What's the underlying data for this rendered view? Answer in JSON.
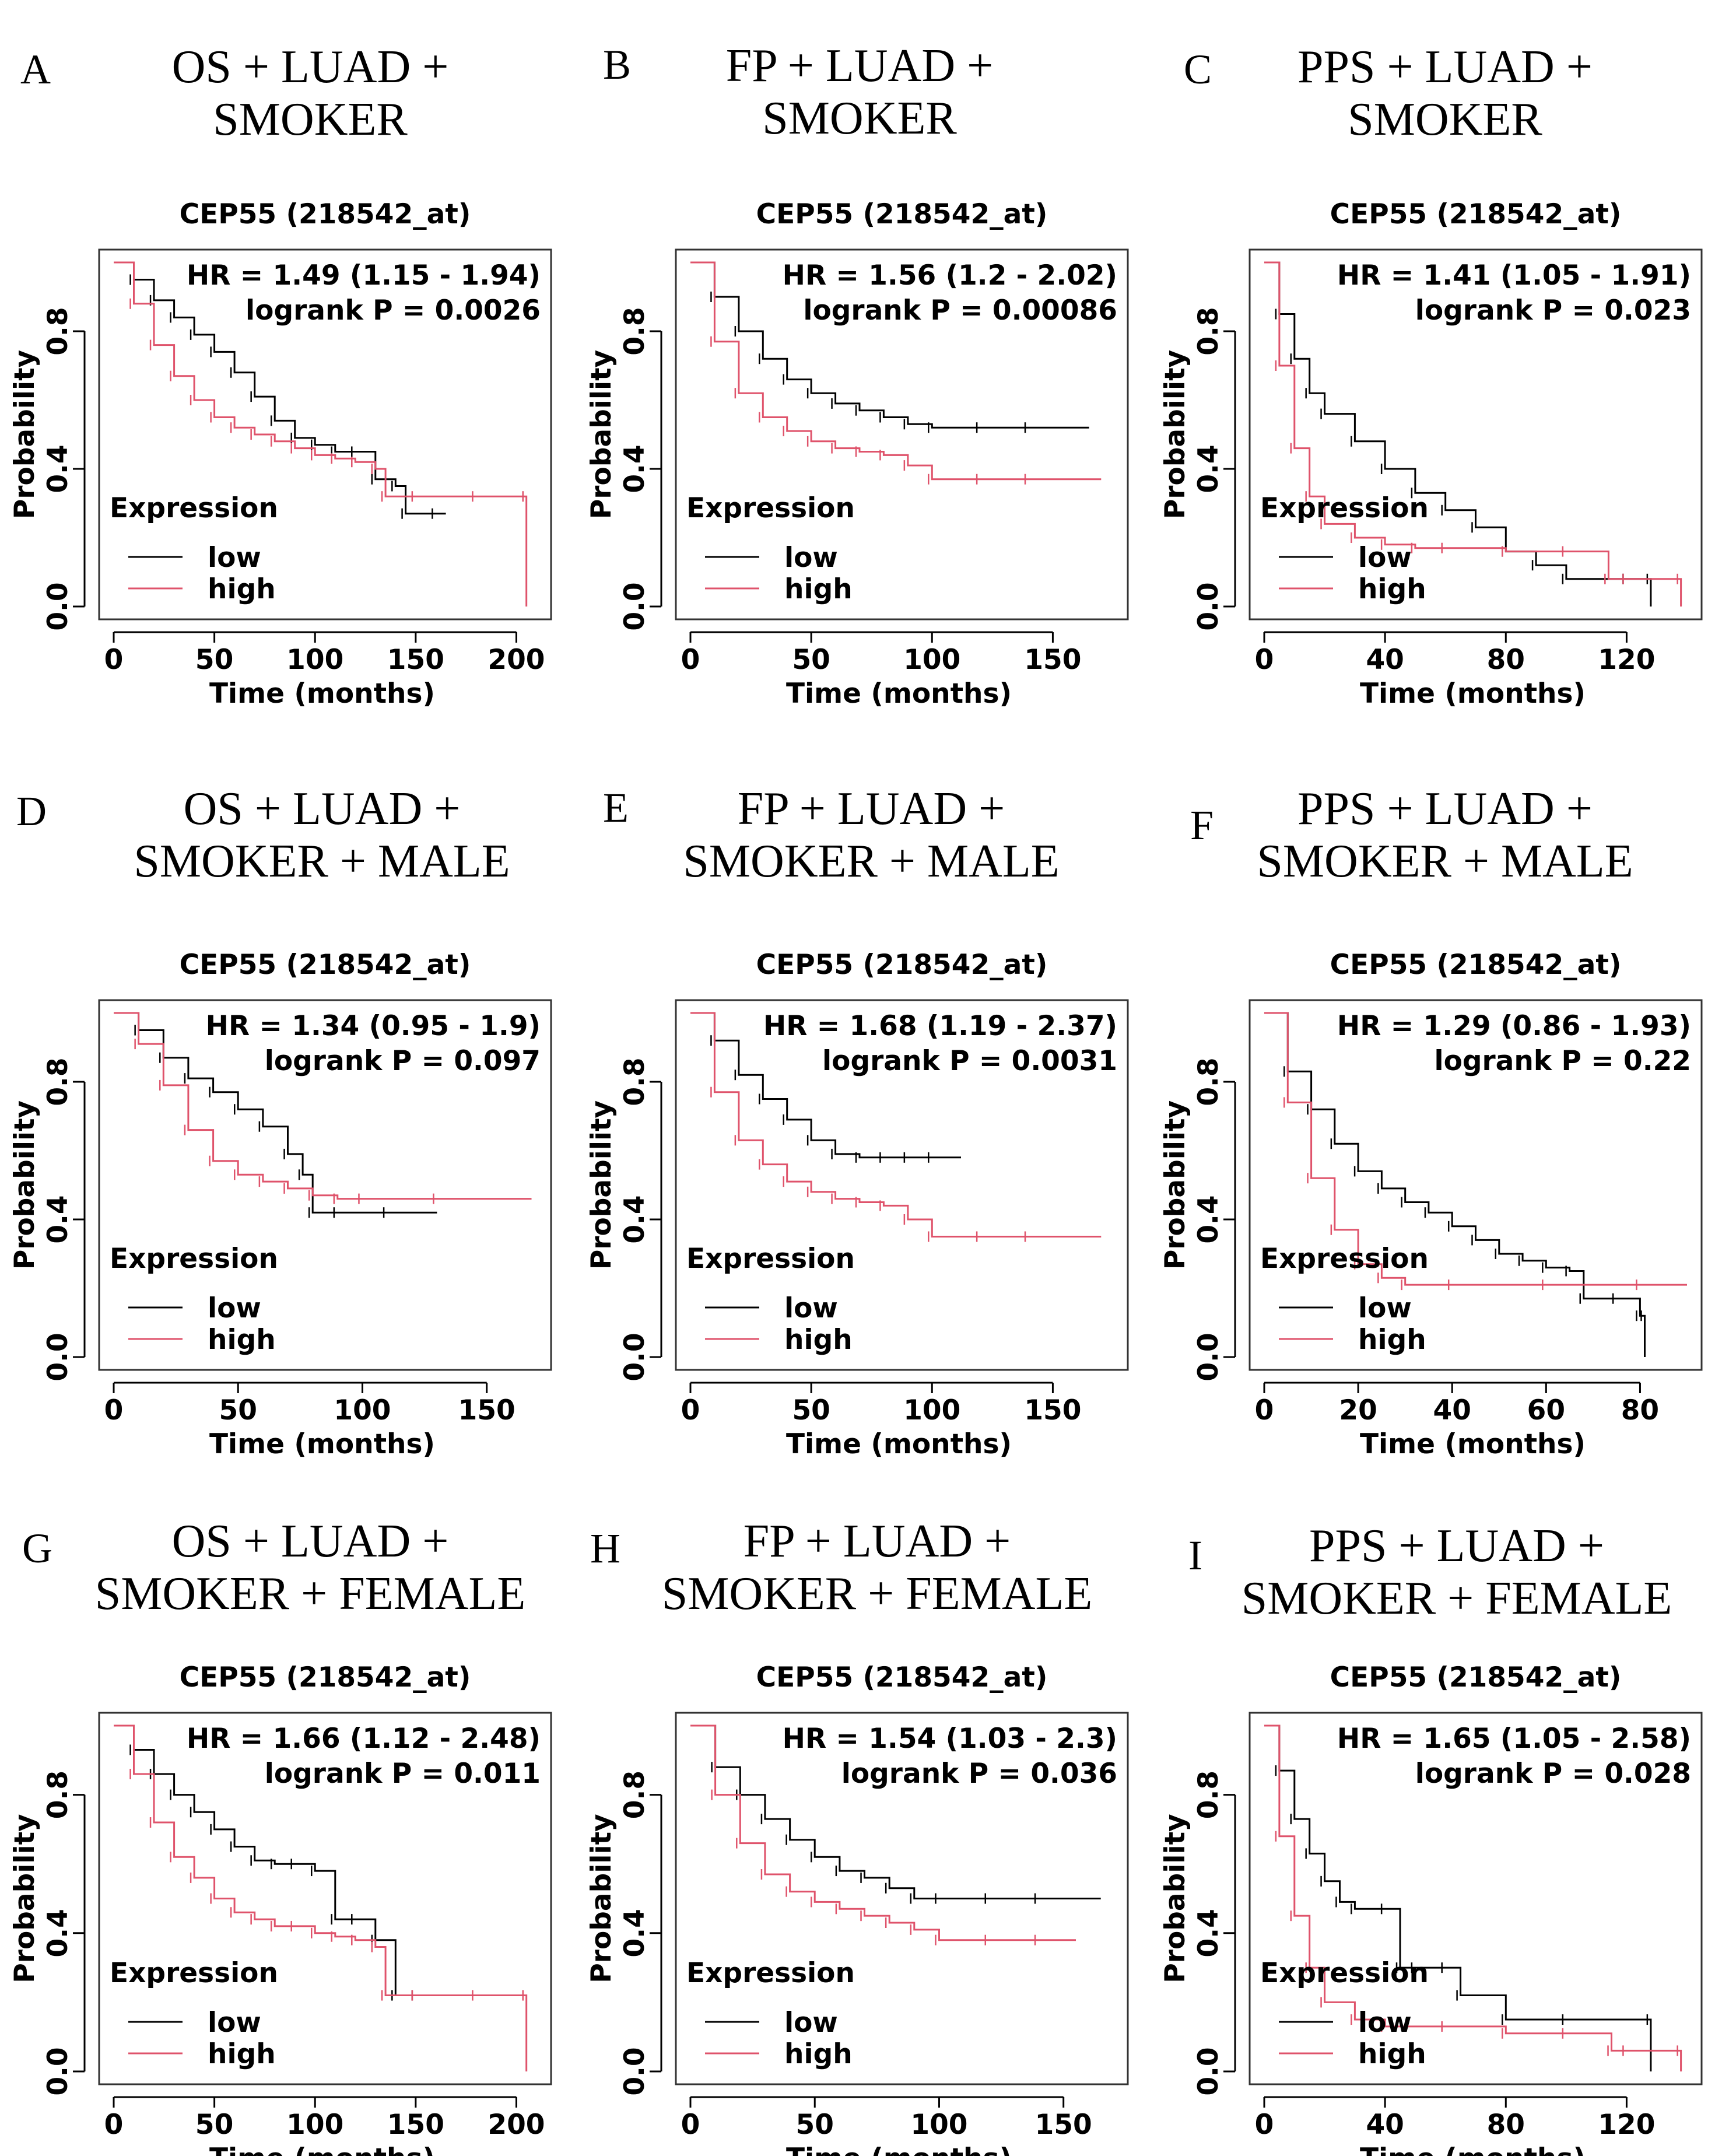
{
  "colors": {
    "low": "#000000",
    "high": "#DF536B"
  },
  "panels": [
    {
      "id": "A",
      "label": "A",
      "title_line1": "OS + LUAD +",
      "title_line2": "SMOKER",
      "gene": "CEP55 (218542_at)",
      "hr": "HR = 1.49 (1.15 - 1.94)",
      "logrank": "logrank P = 0.0026",
      "ylabel": "Probability",
      "xlabel": "Time (months)",
      "legend_title": "Expression",
      "legend_low": "low",
      "legend_high": "high"
    },
    {
      "id": "B",
      "label": "B",
      "title_line1": "FP + LUAD +",
      "title_line2": "SMOKER",
      "gene": "CEP55 (218542_at)",
      "hr": "HR = 1.56 (1.2 - 2.02)",
      "logrank": "logrank P = 0.00086",
      "ylabel": "Probability",
      "xlabel": "Time (months)",
      "legend_title": "Expression",
      "legend_low": "low",
      "legend_high": "high"
    },
    {
      "id": "C",
      "label": "C",
      "title_line1": "PPS + LUAD +",
      "title_line2": "SMOKER",
      "gene": "CEP55 (218542_at)",
      "hr": "HR = 1.41 (1.05 - 1.91)",
      "logrank": "logrank P = 0.023",
      "ylabel": "Probability",
      "xlabel": "Time (months)",
      "legend_title": "Expression",
      "legend_low": "low",
      "legend_high": "high"
    },
    {
      "id": "D",
      "label": "D",
      "title_line1": "OS + LUAD +",
      "title_line2": "SMOKER + MALE",
      "gene": "CEP55 (218542_at)",
      "hr": "HR = 1.34 (0.95 - 1.9)",
      "logrank": "logrank P = 0.097",
      "ylabel": "Probability",
      "xlabel": "Time (months)",
      "legend_title": "Expression",
      "legend_low": "low",
      "legend_high": "high"
    },
    {
      "id": "E",
      "label": "E",
      "title_line1": "FP + LUAD +",
      "title_line2": "SMOKER + MALE",
      "gene": "CEP55 (218542_at)",
      "hr": "HR = 1.68 (1.19 - 2.37)",
      "logrank": "logrank P = 0.0031",
      "ylabel": "Probability",
      "xlabel": "Time (months)",
      "legend_title": "Expression",
      "legend_low": "low",
      "legend_high": "high"
    },
    {
      "id": "F",
      "label": "F",
      "title_line1": "PPS + LUAD +",
      "title_line2": "SMOKER + MALE",
      "gene": "CEP55 (218542_at)",
      "hr": "HR = 1.29 (0.86 - 1.93)",
      "logrank": "logrank P = 0.22",
      "ylabel": "Probability",
      "xlabel": "Time (months)",
      "legend_title": "Expression",
      "legend_low": "low",
      "legend_high": "high"
    },
    {
      "id": "G",
      "label": "G",
      "title_line1": "OS + LUAD +",
      "title_line2": "SMOKER + FEMALE",
      "gene": "CEP55 (218542_at)",
      "hr": "HR = 1.66 (1.12 - 2.48)",
      "logrank": "logrank P = 0.011",
      "ylabel": "Probability",
      "xlabel": "Time (months)",
      "legend_title": "Expression",
      "legend_low": "low",
      "legend_high": "high"
    },
    {
      "id": "H",
      "label": "H",
      "title_line1": "FP + LUAD +",
      "title_line2": "SMOKER + FEMALE",
      "gene": "CEP55 (218542_at)",
      "hr": "HR = 1.54 (1.03 - 2.3)",
      "logrank": "logrank P = 0.036",
      "ylabel": "Probability",
      "xlabel": "Time (months)",
      "legend_title": "Expression",
      "legend_low": "low",
      "legend_high": "high"
    },
    {
      "id": "I",
      "label": "I",
      "title_line1": "PPS + LUAD +",
      "title_line2": "SMOKER + FEMALE",
      "gene": "CEP55 (218542_at)",
      "hr": "HR = 1.65 (1.05 - 2.58)",
      "logrank": "logrank P = 0.028",
      "ylabel": "Probability",
      "xlabel": "Time (months)",
      "legend_title": "Expression",
      "legend_low": "low",
      "legend_high": "high"
    }
  ],
  "chart_data": [
    {
      "panel": "A",
      "type": "line",
      "title": "CEP55 (218542_at)",
      "xlabel": "Time (months)",
      "ylabel": "Probability",
      "xlim": [
        0,
        210
      ],
      "ylim": [
        0,
        1
      ],
      "xticks": [
        0,
        50,
        100,
        150,
        200
      ],
      "yticks": [
        0.0,
        0.4,
        0.8
      ],
      "series": [
        {
          "name": "low",
          "x": [
            0,
            10,
            20,
            30,
            40,
            50,
            60,
            70,
            80,
            90,
            100,
            110,
            120,
            130,
            140,
            145,
            160,
            165
          ],
          "y": [
            1.0,
            0.95,
            0.89,
            0.84,
            0.79,
            0.74,
            0.68,
            0.61,
            0.54,
            0.49,
            0.47,
            0.45,
            0.45,
            0.37,
            0.35,
            0.27,
            0.27,
            0.27
          ]
        },
        {
          "name": "high",
          "x": [
            0,
            10,
            20,
            30,
            40,
            50,
            60,
            70,
            80,
            90,
            100,
            110,
            120,
            130,
            135,
            150,
            180,
            205,
            205
          ],
          "y": [
            1.0,
            0.88,
            0.76,
            0.67,
            0.6,
            0.55,
            0.52,
            0.5,
            0.48,
            0.46,
            0.44,
            0.43,
            0.42,
            0.4,
            0.32,
            0.32,
            0.32,
            0.32,
            0.0
          ]
        }
      ]
    },
    {
      "panel": "B",
      "type": "line",
      "title": "CEP55 (218542_at)",
      "xlabel": "Time (months)",
      "ylabel": "Probability",
      "xlim": [
        0,
        175
      ],
      "ylim": [
        0,
        1
      ],
      "xticks": [
        0,
        50,
        100,
        150
      ],
      "yticks": [
        0.0,
        0.4,
        0.8
      ],
      "series": [
        {
          "name": "low",
          "x": [
            0,
            10,
            20,
            30,
            40,
            50,
            60,
            70,
            80,
            90,
            100,
            120,
            140,
            165
          ],
          "y": [
            1.0,
            0.9,
            0.8,
            0.72,
            0.66,
            0.62,
            0.59,
            0.57,
            0.55,
            0.53,
            0.52,
            0.52,
            0.52,
            0.52
          ]
        },
        {
          "name": "high",
          "x": [
            0,
            10,
            20,
            30,
            40,
            50,
            60,
            70,
            80,
            90,
            100,
            120,
            140,
            170
          ],
          "y": [
            1.0,
            0.77,
            0.62,
            0.55,
            0.51,
            0.48,
            0.46,
            0.45,
            0.44,
            0.41,
            0.37,
            0.37,
            0.37,
            0.37
          ]
        }
      ]
    },
    {
      "panel": "C",
      "type": "line",
      "title": "CEP55 (218542_at)",
      "xlabel": "Time (months)",
      "ylabel": "Probability",
      "xlim": [
        0,
        140
      ],
      "ylim": [
        0,
        1
      ],
      "xticks": [
        0,
        40,
        80,
        120
      ],
      "yticks": [
        0.0,
        0.4,
        0.8
      ],
      "series": [
        {
          "name": "low",
          "x": [
            0,
            5,
            10,
            15,
            20,
            30,
            40,
            50,
            60,
            70,
            80,
            90,
            100,
            120,
            128,
            128
          ],
          "y": [
            1.0,
            0.85,
            0.72,
            0.62,
            0.56,
            0.48,
            0.4,
            0.33,
            0.28,
            0.23,
            0.16,
            0.12,
            0.08,
            0.08,
            0.08,
            0.0
          ]
        },
        {
          "name": "high",
          "x": [
            0,
            5,
            10,
            15,
            20,
            30,
            40,
            50,
            60,
            80,
            100,
            114,
            120,
            138,
            138
          ],
          "y": [
            1.0,
            0.7,
            0.46,
            0.32,
            0.24,
            0.2,
            0.18,
            0.17,
            0.17,
            0.16,
            0.16,
            0.08,
            0.08,
            0.08,
            0.0
          ]
        }
      ]
    },
    {
      "panel": "D",
      "type": "line",
      "title": "CEP55 (218542_at)",
      "xlabel": "Time (months)",
      "ylabel": "Probability",
      "xlim": [
        0,
        170
      ],
      "ylim": [
        0,
        1
      ],
      "xticks": [
        0,
        50,
        100,
        150
      ],
      "yticks": [
        0.0,
        0.4,
        0.8
      ],
      "series": [
        {
          "name": "low",
          "x": [
            0,
            10,
            20,
            30,
            40,
            50,
            60,
            70,
            76,
            80,
            90,
            110,
            130
          ],
          "y": [
            1.0,
            0.95,
            0.87,
            0.81,
            0.77,
            0.72,
            0.67,
            0.59,
            0.53,
            0.42,
            0.42,
            0.42,
            0.42
          ]
        },
        {
          "name": "high",
          "x": [
            0,
            10,
            20,
            30,
            40,
            50,
            60,
            70,
            80,
            90,
            100,
            130,
            168
          ],
          "y": [
            1.0,
            0.91,
            0.79,
            0.66,
            0.57,
            0.53,
            0.51,
            0.49,
            0.47,
            0.46,
            0.46,
            0.46,
            0.46
          ]
        }
      ]
    },
    {
      "panel": "E",
      "type": "line",
      "title": "CEP55 (218542_at)",
      "xlabel": "Time (months)",
      "ylabel": "Probability",
      "xlim": [
        0,
        175
      ],
      "ylim": [
        0,
        1
      ],
      "xticks": [
        0,
        50,
        100,
        150
      ],
      "yticks": [
        0.0,
        0.4,
        0.8
      ],
      "series": [
        {
          "name": "low",
          "x": [
            0,
            10,
            20,
            30,
            40,
            50,
            60,
            70,
            80,
            90,
            100,
            112
          ],
          "y": [
            1.0,
            0.92,
            0.82,
            0.75,
            0.69,
            0.63,
            0.59,
            0.58,
            0.58,
            0.58,
            0.58,
            0.58
          ]
        },
        {
          "name": "high",
          "x": [
            0,
            10,
            20,
            30,
            40,
            50,
            60,
            70,
            80,
            90,
            100,
            120,
            140,
            170
          ],
          "y": [
            1.0,
            0.77,
            0.63,
            0.56,
            0.51,
            0.48,
            0.46,
            0.45,
            0.44,
            0.4,
            0.35,
            0.35,
            0.35,
            0.35
          ]
        }
      ]
    },
    {
      "panel": "F",
      "type": "line",
      "title": "CEP55 (218542_at)",
      "xlabel": "Time (months)",
      "ylabel": "Probability",
      "xlim": [
        0,
        90
      ],
      "ylim": [
        0,
        1
      ],
      "xticks": [
        0,
        20,
        40,
        60,
        80
      ],
      "yticks": [
        0.0,
        0.4,
        0.8
      ],
      "series": [
        {
          "name": "low",
          "x": [
            0,
            5,
            10,
            15,
            20,
            25,
            30,
            35,
            40,
            45,
            50,
            55,
            60,
            65,
            68,
            75,
            80,
            81,
            81
          ],
          "y": [
            1.0,
            0.83,
            0.72,
            0.62,
            0.54,
            0.49,
            0.45,
            0.42,
            0.38,
            0.34,
            0.3,
            0.28,
            0.26,
            0.25,
            0.17,
            0.17,
            0.12,
            0.12,
            0.0
          ]
        },
        {
          "name": "high",
          "x": [
            0,
            5,
            10,
            15,
            20,
            25,
            30,
            40,
            60,
            80,
            90
          ],
          "y": [
            1.0,
            0.74,
            0.52,
            0.37,
            0.27,
            0.23,
            0.21,
            0.21,
            0.21,
            0.21,
            0.21
          ]
        }
      ]
    },
    {
      "panel": "G",
      "type": "line",
      "title": "CEP55 (218542_at)",
      "xlabel": "Time (months)",
      "ylabel": "Probability",
      "xlim": [
        0,
        210
      ],
      "ylim": [
        0,
        1
      ],
      "xticks": [
        0,
        50,
        100,
        150,
        200
      ],
      "yticks": [
        0.0,
        0.4,
        0.8
      ],
      "series": [
        {
          "name": "low",
          "x": [
            0,
            10,
            20,
            30,
            40,
            50,
            60,
            70,
            80,
            90,
            100,
            110,
            120,
            130,
            140,
            150,
            165
          ],
          "y": [
            1.0,
            0.93,
            0.86,
            0.8,
            0.75,
            0.7,
            0.65,
            0.61,
            0.6,
            0.6,
            0.58,
            0.44,
            0.44,
            0.38,
            0.22,
            0.22,
            0.22
          ]
        },
        {
          "name": "high",
          "x": [
            0,
            10,
            20,
            30,
            40,
            50,
            60,
            70,
            80,
            90,
            100,
            110,
            120,
            130,
            135,
            150,
            180,
            205,
            205
          ],
          "y": [
            1.0,
            0.86,
            0.72,
            0.62,
            0.56,
            0.5,
            0.46,
            0.44,
            0.42,
            0.42,
            0.4,
            0.39,
            0.38,
            0.36,
            0.22,
            0.22,
            0.22,
            0.22,
            0.0
          ]
        }
      ]
    },
    {
      "panel": "H",
      "type": "line",
      "title": "CEP55 (218542_at)",
      "xlabel": "Time (months)",
      "ylabel": "Probability",
      "xlim": [
        0,
        170
      ],
      "ylim": [
        0,
        1
      ],
      "xticks": [
        0,
        50,
        100,
        150
      ],
      "yticks": [
        0.0,
        0.4,
        0.8
      ],
      "series": [
        {
          "name": "low",
          "x": [
            0,
            10,
            20,
            30,
            40,
            50,
            60,
            70,
            80,
            90,
            100,
            120,
            140,
            165
          ],
          "y": [
            1.0,
            0.88,
            0.8,
            0.73,
            0.67,
            0.62,
            0.58,
            0.56,
            0.53,
            0.5,
            0.5,
            0.5,
            0.5,
            0.5
          ]
        },
        {
          "name": "high",
          "x": [
            0,
            10,
            20,
            30,
            40,
            50,
            60,
            70,
            80,
            90,
            100,
            120,
            140,
            155
          ],
          "y": [
            1.0,
            0.8,
            0.66,
            0.57,
            0.52,
            0.49,
            0.47,
            0.45,
            0.43,
            0.41,
            0.38,
            0.38,
            0.38,
            0.38
          ]
        }
      ]
    },
    {
      "panel": "I",
      "type": "line",
      "title": "CEP55 (218542_at)",
      "xlabel": "Time (months)",
      "ylabel": "Probability",
      "xlim": [
        0,
        140
      ],
      "ylim": [
        0,
        1
      ],
      "xticks": [
        0,
        40,
        80,
        120
      ],
      "yticks": [
        0.0,
        0.4,
        0.8
      ],
      "series": [
        {
          "name": "low",
          "x": [
            0,
            5,
            10,
            15,
            20,
            25,
            30,
            40,
            45,
            50,
            60,
            65,
            80,
            100,
            128,
            128
          ],
          "y": [
            1.0,
            0.87,
            0.73,
            0.63,
            0.55,
            0.49,
            0.47,
            0.47,
            0.3,
            0.3,
            0.3,
            0.22,
            0.15,
            0.15,
            0.15,
            0.0
          ]
        },
        {
          "name": "high",
          "x": [
            0,
            5,
            10,
            15,
            20,
            30,
            40,
            60,
            80,
            100,
            115,
            120,
            138,
            138
          ],
          "y": [
            1.0,
            0.68,
            0.45,
            0.3,
            0.2,
            0.15,
            0.13,
            0.13,
            0.11,
            0.11,
            0.06,
            0.06,
            0.06,
            0.0
          ]
        }
      ]
    }
  ]
}
